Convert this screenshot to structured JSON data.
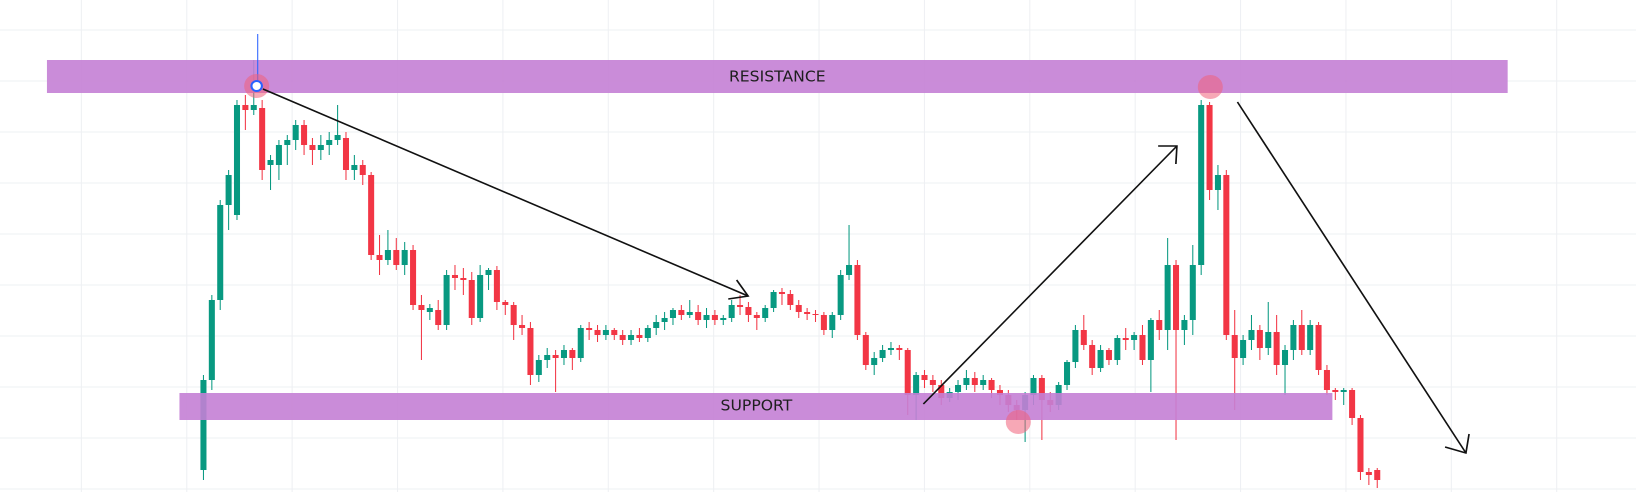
{
  "chart_data": {
    "type": "candlestick",
    "annotations": [
      "RESISTANCE",
      "SUPPORT"
    ],
    "up_color": "#089981",
    "down_color": "#f23645",
    "ylim": [
      8,
      500
    ],
    "ohlc": [
      [
        30,
        125,
        20,
        120
      ],
      [
        120,
        205,
        110,
        200
      ],
      [
        200,
        300,
        190,
        295
      ],
      [
        295,
        330,
        270,
        325
      ],
      [
        285,
        400,
        280,
        395
      ],
      [
        395,
        405,
        370,
        390
      ],
      [
        390,
        440,
        385,
        395
      ],
      [
        392,
        400,
        320,
        330
      ],
      [
        335,
        345,
        310,
        340
      ],
      [
        335,
        360,
        320,
        355
      ],
      [
        355,
        365,
        335,
        360
      ],
      [
        360,
        380,
        350,
        375
      ],
      [
        375,
        380,
        345,
        355
      ],
      [
        355,
        362,
        335,
        350
      ],
      [
        350,
        365,
        340,
        355
      ],
      [
        355,
        368,
        345,
        360
      ],
      [
        360,
        395,
        355,
        365
      ],
      [
        362,
        368,
        320,
        330
      ],
      [
        330,
        345,
        320,
        335
      ],
      [
        335,
        340,
        315,
        325
      ],
      [
        325,
        328,
        240,
        245
      ],
      [
        245,
        265,
        225,
        240
      ],
      [
        240,
        270,
        235,
        250
      ],
      [
        250,
        262,
        230,
        235
      ],
      [
        235,
        258,
        225,
        250
      ],
      [
        250,
        255,
        190,
        195
      ],
      [
        195,
        205,
        140,
        190
      ],
      [
        188,
        196,
        180,
        192
      ],
      [
        190,
        200,
        170,
        175
      ],
      [
        175,
        230,
        170,
        225
      ],
      [
        225,
        235,
        210,
        222
      ],
      [
        222,
        232,
        205,
        220
      ],
      [
        220,
        228,
        175,
        182
      ],
      [
        182,
        235,
        178,
        225
      ],
      [
        225,
        232,
        210,
        230
      ],
      [
        230,
        234,
        190,
        198
      ],
      [
        198,
        200,
        185,
        195
      ],
      [
        195,
        198,
        160,
        175
      ],
      [
        175,
        185,
        165,
        172
      ],
      [
        172,
        178,
        115,
        125
      ],
      [
        125,
        145,
        118,
        140
      ],
      [
        140,
        152,
        132,
        145
      ],
      [
        145,
        150,
        108,
        142
      ],
      [
        142,
        155,
        135,
        150
      ],
      [
        150,
        152,
        130,
        142
      ],
      [
        142,
        175,
        138,
        172
      ],
      [
        172,
        178,
        160,
        170
      ],
      [
        170,
        175,
        158,
        165
      ],
      [
        165,
        175,
        160,
        170
      ],
      [
        170,
        172,
        160,
        165
      ],
      [
        165,
        170,
        155,
        160
      ],
      [
        160,
        170,
        155,
        165
      ],
      [
        165,
        172,
        158,
        162
      ],
      [
        162,
        175,
        158,
        172
      ],
      [
        172,
        185,
        165,
        178
      ],
      [
        178,
        188,
        170,
        182
      ],
      [
        182,
        192,
        175,
        190
      ],
      [
        190,
        195,
        180,
        185
      ],
      [
        185,
        200,
        182,
        188
      ],
      [
        188,
        195,
        175,
        180
      ],
      [
        180,
        192,
        172,
        185
      ],
      [
        185,
        190,
        175,
        180
      ],
      [
        180,
        185,
        175,
        182
      ],
      [
        182,
        200,
        178,
        195
      ],
      [
        195,
        205,
        185,
        193
      ],
      [
        193,
        198,
        178,
        185
      ],
      [
        185,
        188,
        170,
        182
      ],
      [
        182,
        195,
        178,
        192
      ],
      [
        192,
        210,
        188,
        208
      ],
      [
        208,
        212,
        195,
        206
      ],
      [
        206,
        210,
        190,
        195
      ],
      [
        195,
        200,
        182,
        188
      ],
      [
        188,
        192,
        180,
        186
      ],
      [
        186,
        190,
        178,
        185
      ],
      [
        185,
        188,
        165,
        170
      ],
      [
        170,
        188,
        162,
        185
      ],
      [
        185,
        230,
        180,
        225
      ],
      [
        225,
        275,
        220,
        235
      ],
      [
        235,
        240,
        160,
        165
      ],
      [
        165,
        168,
        130,
        135
      ],
      [
        135,
        148,
        125,
        142
      ],
      [
        142,
        155,
        138,
        150
      ],
      [
        150,
        158,
        145,
        152
      ],
      [
        152,
        155,
        140,
        150
      ],
      [
        150,
        152,
        85,
        105
      ],
      [
        105,
        128,
        80,
        125
      ],
      [
        125,
        130,
        112,
        120
      ],
      [
        120,
        125,
        108,
        115
      ],
      [
        115,
        120,
        95,
        102
      ],
      [
        102,
        112,
        98,
        108
      ],
      [
        108,
        120,
        100,
        115
      ],
      [
        115,
        130,
        110,
        122
      ],
      [
        122,
        128,
        108,
        115
      ],
      [
        115,
        125,
        110,
        120
      ],
      [
        120,
        122,
        102,
        110
      ],
      [
        110,
        115,
        95,
        105
      ],
      [
        105,
        110,
        88,
        95
      ],
      [
        95,
        100,
        80,
        90
      ],
      [
        90,
        108,
        58,
        105
      ],
      [
        105,
        125,
        95,
        122
      ],
      [
        122,
        125,
        60,
        100
      ],
      [
        100,
        108,
        88,
        95
      ],
      [
        95,
        118,
        90,
        115
      ],
      [
        115,
        140,
        110,
        138
      ],
      [
        138,
        175,
        132,
        170
      ],
      [
        170,
        185,
        150,
        155
      ],
      [
        155,
        160,
        125,
        132
      ],
      [
        132,
        155,
        128,
        150
      ],
      [
        150,
        152,
        135,
        140
      ],
      [
        140,
        165,
        135,
        162
      ],
      [
        162,
        172,
        150,
        160
      ],
      [
        160,
        168,
        150,
        165
      ],
      [
        165,
        175,
        135,
        140
      ],
      [
        140,
        182,
        108,
        180
      ],
      [
        180,
        190,
        160,
        170
      ],
      [
        170,
        262,
        150,
        235
      ],
      [
        235,
        240,
        60,
        170
      ],
      [
        170,
        185,
        155,
        180
      ],
      [
        180,
        255,
        165,
        235
      ],
      [
        235,
        400,
        225,
        395
      ],
      [
        395,
        398,
        300,
        310
      ],
      [
        310,
        335,
        290,
        325
      ],
      [
        325,
        330,
        160,
        165
      ],
      [
        165,
        190,
        90,
        142
      ],
      [
        142,
        165,
        135,
        160
      ],
      [
        160,
        185,
        150,
        170
      ],
      [
        170,
        175,
        140,
        152
      ],
      [
        152,
        198,
        145,
        168
      ],
      [
        168,
        185,
        125,
        135
      ],
      [
        135,
        155,
        105,
        150
      ],
      [
        150,
        180,
        140,
        175
      ],
      [
        175,
        190,
        145,
        150
      ],
      [
        150,
        180,
        145,
        175
      ],
      [
        175,
        178,
        125,
        130
      ],
      [
        130,
        135,
        105,
        110
      ],
      [
        110,
        112,
        100,
        108
      ],
      [
        108,
        112,
        95,
        110
      ],
      [
        110,
        112,
        75,
        82
      ],
      [
        82,
        85,
        20,
        28
      ],
      [
        28,
        32,
        15,
        25
      ],
      [
        30,
        32,
        12,
        20
      ]
    ]
  }
}
